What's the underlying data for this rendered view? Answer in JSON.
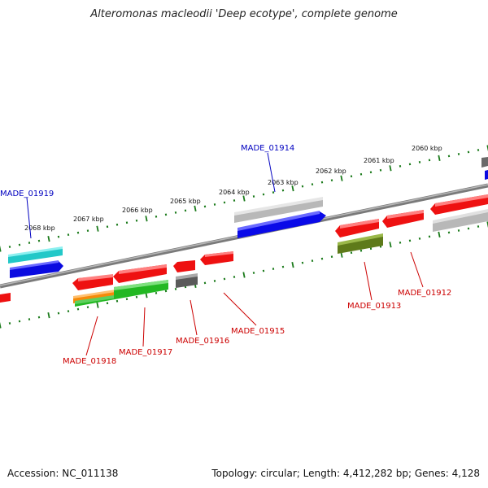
{
  "title": "Alteromonas macleodii 'Deep ecotype', complete genome",
  "footer": {
    "accession": "Accession: NC_011138",
    "summary": "Topology: circular; Length: 4,412,282 bp; Genes: 4,128"
  },
  "colors": {
    "blue_label": "#0000c0",
    "red_label": "#cc0000",
    "tick": "#1a7a1a",
    "backbone": "#808080"
  },
  "kbp_labels": [
    "2068 kbp",
    "2067 kbp",
    "2066 kbp",
    "2065 kbp",
    "2064 kbp",
    "2063 kbp",
    "2062 kbp",
    "2061 kbp",
    "2060 kbp"
  ],
  "gene_labels": [
    {
      "text": "MADE_01919",
      "strand": "plus"
    },
    {
      "text": "MADE_01914",
      "strand": "plus"
    },
    {
      "text": "MADE_01918",
      "strand": "minus"
    },
    {
      "text": "MADE_01917",
      "strand": "minus"
    },
    {
      "text": "MADE_01916",
      "strand": "minus"
    },
    {
      "text": "MADE_01915",
      "strand": "minus"
    },
    {
      "text": "MADE_01913",
      "strand": "minus"
    },
    {
      "text": "MADE_01912",
      "strand": "minus"
    }
  ]
}
